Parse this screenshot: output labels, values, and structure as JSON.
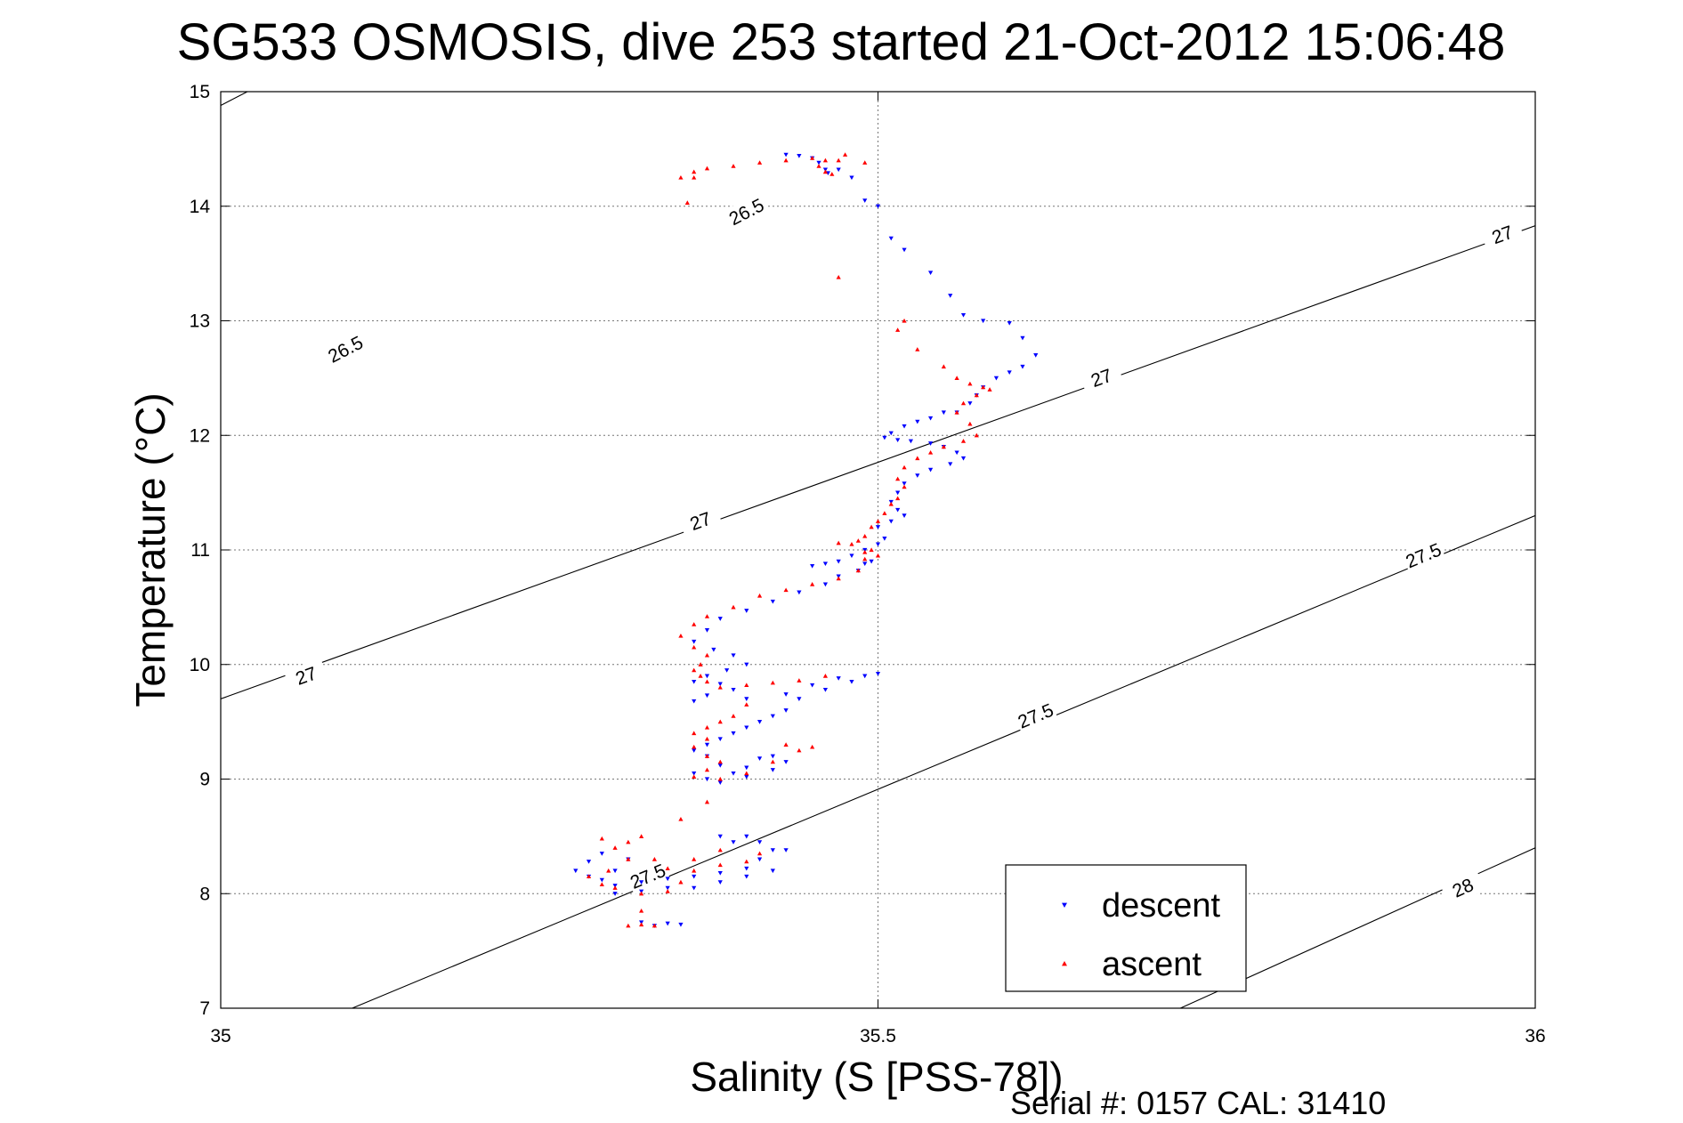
{
  "chart_data": {
    "type": "scatter",
    "title": "SG533 OSMOSIS, dive 253 started 21-Oct-2012 15:06:48",
    "xlabel": "Salinity (S [PSS-78])",
    "ylabel": "Temperature (°C)",
    "xlim": [
      35,
      36
    ],
    "ylim": [
      7,
      15
    ],
    "xticks": [
      "35",
      "35.5",
      "36"
    ],
    "yticks": [
      "7",
      "8",
      "9",
      "10",
      "11",
      "12",
      "13",
      "14",
      "15"
    ],
    "grid": true,
    "legend_position": "bottom-right",
    "footer": "Serial #: 0157  CAL: 31410",
    "density_contours": [
      {
        "label": "26.5",
        "color": "#000000",
        "points": [
          [
            35.0,
            14.88
          ],
          [
            36.0,
            20.8
          ]
        ],
        "label_at": [
          [
            35.095,
            12.75
          ],
          [
            35.4,
            13.95
          ]
        ]
      },
      {
        "label": "27",
        "color": "#000000",
        "points": [
          [
            35.0,
            9.7
          ],
          [
            36.0,
            13.83
          ]
        ],
        "label_at": [
          [
            35.065,
            9.9
          ],
          [
            35.365,
            11.25
          ],
          [
            35.67,
            12.5
          ],
          [
            35.975,
            13.75
          ]
        ]
      },
      {
        "label": "27.5",
        "color": "#000000",
        "points": [
          [
            35.1,
            7.0
          ],
          [
            36.0,
            11.3
          ]
        ],
        "label_at": [
          [
            35.325,
            8.15
          ],
          [
            35.62,
            9.55
          ],
          [
            35.915,
            10.95
          ]
        ]
      },
      {
        "label": "28",
        "color": "#000000",
        "points": [
          [
            35.73,
            7.0
          ],
          [
            36.0,
            8.4
          ]
        ],
        "label_at": [
          [
            35.945,
            8.05
          ]
        ]
      }
    ],
    "series": [
      {
        "name": "descent",
        "color": "#0000ff",
        "marker": "triangle-down",
        "points": [
          [
            35.43,
            14.45
          ],
          [
            35.44,
            14.44
          ],
          [
            35.45,
            14.42
          ],
          [
            35.455,
            14.38
          ],
          [
            35.46,
            14.32
          ],
          [
            35.462,
            14.29
          ],
          [
            35.47,
            14.32
          ],
          [
            35.48,
            14.25
          ],
          [
            35.49,
            14.05
          ],
          [
            35.5,
            14.0
          ],
          [
            35.51,
            13.72
          ],
          [
            35.52,
            13.62
          ],
          [
            35.54,
            13.42
          ],
          [
            35.555,
            13.22
          ],
          [
            35.565,
            13.05
          ],
          [
            35.58,
            13.0
          ],
          [
            35.6,
            12.98
          ],
          [
            35.61,
            12.85
          ],
          [
            35.62,
            12.7
          ],
          [
            35.61,
            12.6
          ],
          [
            35.6,
            12.55
          ],
          [
            35.59,
            12.5
          ],
          [
            35.58,
            12.42
          ],
          [
            35.575,
            12.35
          ],
          [
            35.57,
            12.28
          ],
          [
            35.56,
            12.2
          ],
          [
            35.55,
            12.2
          ],
          [
            35.54,
            12.15
          ],
          [
            35.53,
            12.12
          ],
          [
            35.52,
            12.08
          ],
          [
            35.51,
            12.02
          ],
          [
            35.505,
            11.98
          ],
          [
            35.515,
            11.96
          ],
          [
            35.525,
            11.95
          ],
          [
            35.54,
            11.93
          ],
          [
            35.55,
            11.9
          ],
          [
            35.56,
            11.85
          ],
          [
            35.565,
            11.8
          ],
          [
            35.555,
            11.75
          ],
          [
            35.54,
            11.7
          ],
          [
            35.53,
            11.65
          ],
          [
            35.52,
            11.58
          ],
          [
            35.515,
            11.5
          ],
          [
            35.51,
            11.42
          ],
          [
            35.515,
            11.35
          ],
          [
            35.52,
            11.3
          ],
          [
            35.51,
            11.25
          ],
          [
            35.5,
            11.2
          ],
          [
            35.505,
            11.1
          ],
          [
            35.5,
            11.05
          ],
          [
            35.49,
            11.0
          ],
          [
            35.48,
            10.95
          ],
          [
            35.47,
            10.9
          ],
          [
            35.46,
            10.88
          ],
          [
            35.45,
            10.86
          ],
          [
            35.49,
            10.88
          ],
          [
            35.495,
            10.9
          ],
          [
            35.485,
            10.82
          ],
          [
            35.47,
            10.77
          ],
          [
            35.46,
            10.7
          ],
          [
            35.44,
            10.63
          ],
          [
            35.42,
            10.55
          ],
          [
            35.4,
            10.47
          ],
          [
            35.38,
            10.4
          ],
          [
            35.37,
            10.3
          ],
          [
            35.36,
            10.2
          ],
          [
            35.375,
            10.13
          ],
          [
            35.39,
            10.08
          ],
          [
            35.4,
            10.0
          ],
          [
            35.385,
            9.95
          ],
          [
            35.37,
            9.9
          ],
          [
            35.36,
            9.85
          ],
          [
            35.38,
            9.83
          ],
          [
            35.39,
            9.78
          ],
          [
            35.37,
            9.73
          ],
          [
            35.36,
            9.68
          ],
          [
            35.4,
            9.7
          ],
          [
            35.43,
            9.74
          ],
          [
            35.46,
            9.78
          ],
          [
            35.48,
            9.85
          ],
          [
            35.49,
            9.9
          ],
          [
            35.5,
            9.92
          ],
          [
            35.47,
            9.88
          ],
          [
            35.45,
            9.82
          ],
          [
            35.44,
            9.7
          ],
          [
            35.43,
            9.6
          ],
          [
            35.42,
            9.55
          ],
          [
            35.41,
            9.5
          ],
          [
            35.4,
            9.45
          ],
          [
            35.39,
            9.4
          ],
          [
            35.38,
            9.35
          ],
          [
            35.37,
            9.3
          ],
          [
            35.36,
            9.25
          ],
          [
            35.37,
            9.2
          ],
          [
            35.38,
            9.12
          ],
          [
            35.39,
            9.05
          ],
          [
            35.4,
            9.1
          ],
          [
            35.41,
            9.18
          ],
          [
            35.42,
            9.2
          ],
          [
            35.43,
            9.15
          ],
          [
            35.42,
            9.08
          ],
          [
            35.4,
            9.02
          ],
          [
            35.38,
            8.97
          ],
          [
            35.37,
            9.0
          ],
          [
            35.36,
            9.05
          ],
          [
            35.38,
            8.5
          ],
          [
            35.39,
            8.45
          ],
          [
            35.4,
            8.5
          ],
          [
            35.41,
            8.45
          ],
          [
            35.42,
            8.38
          ],
          [
            35.41,
            8.3
          ],
          [
            35.4,
            8.22
          ],
          [
            35.38,
            8.18
          ],
          [
            35.36,
            8.15
          ],
          [
            35.34,
            8.13
          ],
          [
            35.32,
            8.1
          ],
          [
            35.3,
            8.07
          ],
          [
            35.29,
            8.12
          ],
          [
            35.3,
            8.2
          ],
          [
            35.31,
            8.3
          ],
          [
            35.29,
            8.35
          ],
          [
            35.28,
            8.28
          ],
          [
            35.27,
            8.2
          ],
          [
            35.28,
            8.15
          ],
          [
            35.3,
            8.0
          ],
          [
            35.32,
            8.02
          ],
          [
            35.34,
            8.05
          ],
          [
            35.36,
            8.05
          ],
          [
            35.38,
            8.1
          ],
          [
            35.4,
            8.15
          ],
          [
            35.42,
            8.2
          ],
          [
            35.43,
            8.38
          ],
          [
            35.32,
            7.75
          ],
          [
            35.33,
            7.72
          ],
          [
            35.34,
            7.74
          ],
          [
            35.35,
            7.73
          ]
        ]
      },
      {
        "name": "ascent",
        "color": "#ff0000",
        "marker": "triangle-up",
        "points": [
          [
            35.35,
            14.25
          ],
          [
            35.36,
            14.3
          ],
          [
            35.37,
            14.33
          ],
          [
            35.39,
            14.35
          ],
          [
            35.41,
            14.38
          ],
          [
            35.43,
            14.4
          ],
          [
            35.45,
            14.42
          ],
          [
            35.46,
            14.4
          ],
          [
            35.455,
            14.35
          ],
          [
            35.46,
            14.3
          ],
          [
            35.465,
            14.28
          ],
          [
            35.47,
            14.4
          ],
          [
            35.475,
            14.45
          ],
          [
            35.49,
            14.38
          ],
          [
            35.355,
            14.03
          ],
          [
            35.36,
            14.25
          ],
          [
            35.47,
            13.38
          ],
          [
            35.515,
            12.92
          ],
          [
            35.52,
            13.0
          ],
          [
            35.53,
            12.75
          ],
          [
            35.55,
            12.6
          ],
          [
            35.56,
            12.5
          ],
          [
            35.57,
            12.45
          ],
          [
            35.58,
            12.42
          ],
          [
            35.585,
            12.4
          ],
          [
            35.575,
            12.35
          ],
          [
            35.565,
            12.28
          ],
          [
            35.56,
            12.2
          ],
          [
            35.57,
            12.1
          ],
          [
            35.575,
            12.0
          ],
          [
            35.565,
            11.95
          ],
          [
            35.55,
            11.9
          ],
          [
            35.54,
            11.85
          ],
          [
            35.53,
            11.8
          ],
          [
            35.52,
            11.72
          ],
          [
            35.515,
            11.62
          ],
          [
            35.52,
            11.55
          ],
          [
            35.515,
            11.45
          ],
          [
            35.51,
            11.4
          ],
          [
            35.505,
            11.32
          ],
          [
            35.5,
            11.25
          ],
          [
            35.495,
            11.2
          ],
          [
            35.49,
            11.12
          ],
          [
            35.485,
            11.08
          ],
          [
            35.48,
            11.05
          ],
          [
            35.47,
            11.06
          ],
          [
            35.495,
            11.0
          ],
          [
            35.5,
            10.95
          ],
          [
            35.49,
            10.92
          ],
          [
            35.49,
            10.98
          ],
          [
            35.485,
            10.82
          ],
          [
            35.47,
            10.75
          ],
          [
            35.45,
            10.7
          ],
          [
            35.43,
            10.65
          ],
          [
            35.41,
            10.6
          ],
          [
            35.39,
            10.5
          ],
          [
            35.37,
            10.42
          ],
          [
            35.36,
            10.35
          ],
          [
            35.35,
            10.25
          ],
          [
            35.36,
            10.15
          ],
          [
            35.37,
            10.08
          ],
          [
            35.365,
            10.0
          ],
          [
            35.36,
            9.95
          ],
          [
            35.365,
            9.9
          ],
          [
            35.37,
            9.85
          ],
          [
            35.38,
            9.8
          ],
          [
            35.4,
            9.82
          ],
          [
            35.42,
            9.84
          ],
          [
            35.44,
            9.86
          ],
          [
            35.46,
            9.9
          ],
          [
            35.4,
            9.65
          ],
          [
            35.39,
            9.55
          ],
          [
            35.38,
            9.5
          ],
          [
            35.37,
            9.45
          ],
          [
            35.36,
            9.4
          ],
          [
            35.37,
            9.35
          ],
          [
            35.36,
            9.28
          ],
          [
            35.37,
            9.2
          ],
          [
            35.38,
            9.15
          ],
          [
            35.37,
            9.08
          ],
          [
            35.36,
            9.02
          ],
          [
            35.38,
            9.0
          ],
          [
            35.4,
            9.05
          ],
          [
            35.42,
            9.15
          ],
          [
            35.44,
            9.25
          ],
          [
            35.45,
            9.28
          ],
          [
            35.43,
            9.3
          ],
          [
            35.35,
            8.65
          ],
          [
            35.37,
            8.8
          ],
          [
            35.32,
            8.5
          ],
          [
            35.31,
            8.45
          ],
          [
            35.29,
            8.48
          ],
          [
            35.3,
            8.4
          ],
          [
            35.31,
            8.3
          ],
          [
            35.295,
            8.2
          ],
          [
            35.28,
            8.15
          ],
          [
            35.29,
            8.08
          ],
          [
            35.3,
            8.05
          ],
          [
            35.32,
            8.0
          ],
          [
            35.34,
            8.02
          ],
          [
            35.35,
            8.1
          ],
          [
            35.36,
            8.2
          ],
          [
            35.38,
            8.25
          ],
          [
            35.4,
            8.28
          ],
          [
            35.41,
            8.35
          ],
          [
            35.38,
            8.38
          ],
          [
            35.36,
            8.3
          ],
          [
            35.34,
            8.22
          ],
          [
            35.33,
            8.3
          ],
          [
            35.32,
            7.85
          ],
          [
            35.31,
            7.72
          ],
          [
            35.32,
            7.73
          ],
          [
            35.33,
            7.72
          ]
        ]
      }
    ]
  }
}
